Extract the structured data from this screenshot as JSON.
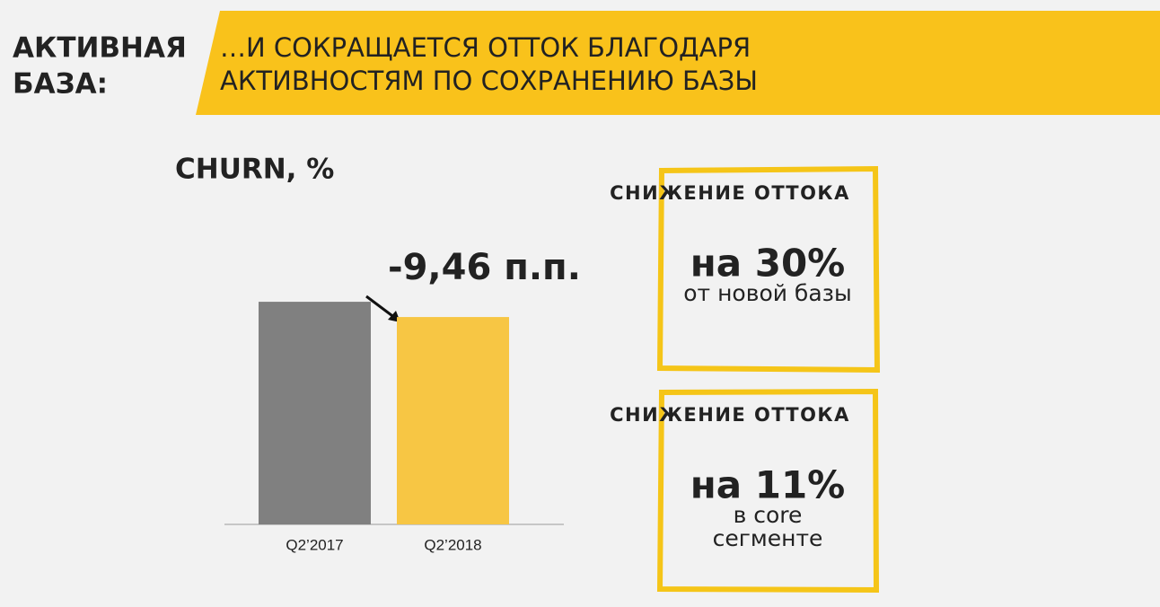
{
  "header": {
    "section": [
      "АКТИВНАЯ",
      "БАЗА:"
    ],
    "title": [
      "…И СОКРАЩАЕТСЯ ОТТОК БЛАГОДАРЯ",
      "АКТИВНОСТЯМ ПО СОХРАНЕНИЮ БАЗЫ"
    ]
  },
  "chart_data": {
    "type": "bar",
    "title": "CHURN, %",
    "categories": [
      "Q2’2017",
      "Q2’2018"
    ],
    "values": [
      138,
      128.54
    ],
    "colors": [
      "#808080",
      "#f7c644"
    ],
    "ylim": [
      0,
      172
    ],
    "annotation": "-9,46 п.п."
  },
  "cards": [
    {
      "heading": "СНИЖЕНИЕ ОТТОКА",
      "value": "на 30%",
      "note": [
        "от новой базы"
      ]
    },
    {
      "heading": "СНИЖЕНИЕ ОТТОКА",
      "value": "на 11%",
      "note": [
        "в core",
        "сегменте"
      ]
    }
  ]
}
